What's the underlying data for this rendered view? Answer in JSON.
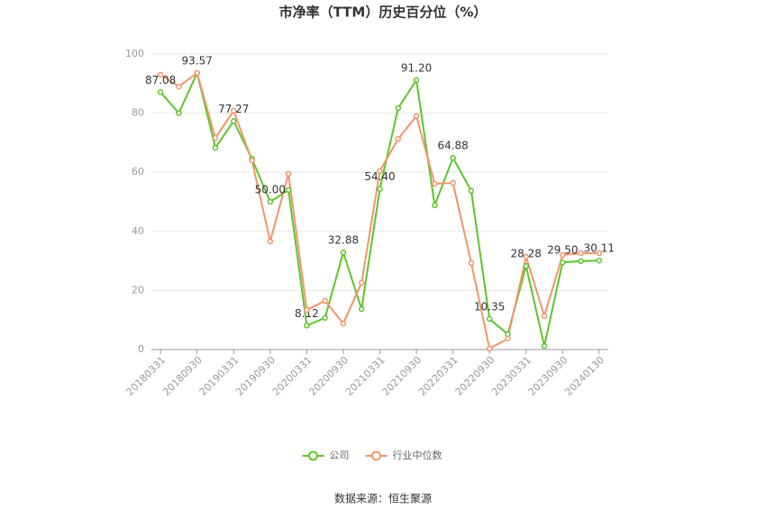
{
  "chart_data": {
    "type": "line",
    "title": "市净率（TTM）历史百分位（%）",
    "categories": [
      "20180331",
      null,
      "20180930",
      null,
      "20190331",
      null,
      "20190930",
      null,
      "20200331",
      null,
      "20200930",
      null,
      "20210331",
      null,
      "20210930",
      null,
      "20220331",
      null,
      "20220930",
      null,
      "20230331",
      null,
      "20230930",
      null,
      "20240130"
    ],
    "series": [
      {
        "name": "公司",
        "color": "#5cc52a",
        "values": [
          87.08,
          80,
          93.57,
          68.3,
          77.27,
          64.6,
          50,
          54,
          8.12,
          10.7,
          32.88,
          13.7,
          54.4,
          81.7,
          91.2,
          48.8,
          64.88,
          53.7,
          10.35,
          5.2,
          28.28,
          1.2,
          29.5,
          29.9,
          30.11
        ],
        "value_labels": [
          "87.08",
          null,
          "93.57",
          null,
          "77.27",
          null,
          "50.00",
          null,
          "8.12",
          null,
          "32.88",
          null,
          "54.40",
          null,
          "91.20",
          null,
          "64.88",
          null,
          "10.35",
          null,
          "28.28",
          null,
          "29.50",
          null,
          "30.11"
        ]
      },
      {
        "name": "行业中位数",
        "color": "#f4936a",
        "values": [
          93,
          89,
          93.6,
          71.6,
          80.8,
          64,
          36.6,
          59.5,
          13.4,
          16.5,
          8.8,
          22.6,
          60.4,
          71.3,
          79,
          56.1,
          56.4,
          29.3,
          0.3,
          3.7,
          31.4,
          11.3,
          32,
          32.6,
          32.6
        ]
      }
    ],
    "ylim": [
      0,
      100
    ],
    "yticks": [
      0,
      20,
      40,
      60,
      80,
      100
    ],
    "grid": true,
    "legend": "bottom",
    "source": "数据来源：恒生聚源"
  }
}
